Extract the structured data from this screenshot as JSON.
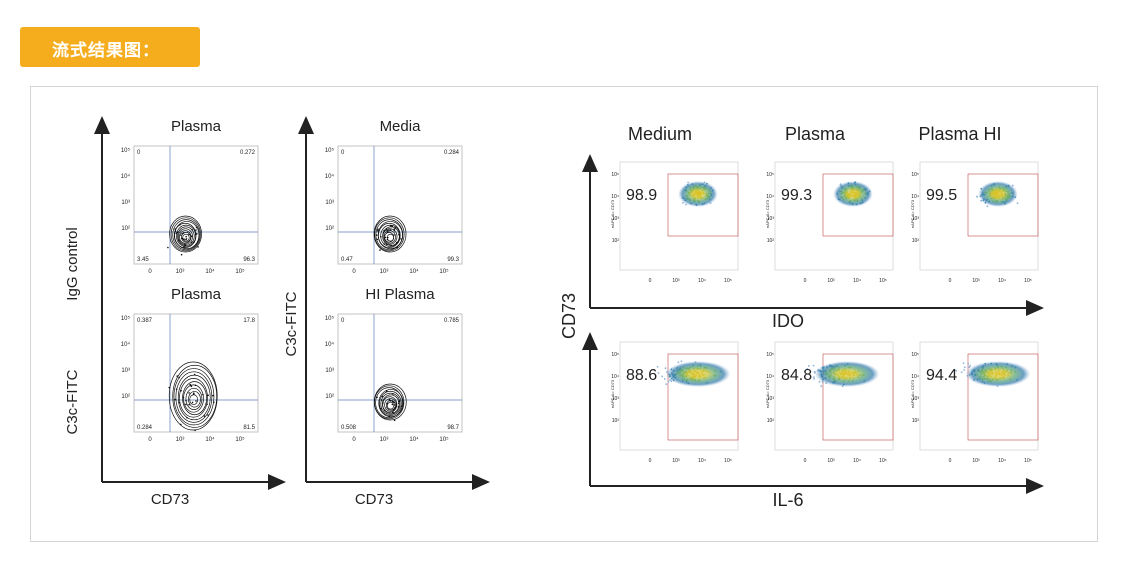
{
  "header": {
    "title": "流式结果图："
  },
  "colors": {
    "badge": "#f5ad1d",
    "axis": "#222222",
    "gate": "#5b7fb8",
    "box_gate": "#c04a4a",
    "quad_text": "#4a6aa8"
  },
  "chart_data": [
    {
      "type": "contour-panel-grid",
      "x_axis_label": "CD73",
      "y_axis_label": "C3c-FITC",
      "row_labels": [
        "IgG control",
        "C3c-FITC"
      ],
      "column_axis_label": "CD73",
      "tick_labels_x": [
        "0",
        "10³",
        "10⁴",
        "10⁵"
      ],
      "tick_labels_y": [
        "0",
        "10²",
        "10³",
        "10⁴",
        "10⁵"
      ],
      "panels": [
        {
          "title": "Plasma",
          "quadrants": {
            "ul": "0",
            "ur": "0.272",
            "ll": "3.45",
            "lr": "96.3"
          }
        },
        {
          "title": "Media",
          "quadrants": {
            "ul": "0",
            "ur": "0.284",
            "ll": "0.47",
            "lr": "99.3"
          }
        },
        {
          "title": "Plasma",
          "quadrants": {
            "ul": "0.387",
            "ur": "17.8",
            "ll": "0.284",
            "lr": "81.5"
          }
        },
        {
          "title": "HI Plasma",
          "quadrants": {
            "ul": "0",
            "ur": "0.785",
            "ll": "0.508",
            "lr": "98.7"
          }
        }
      ]
    },
    {
      "type": "density-panel-grid",
      "column_titles": [
        "Medium",
        "Plasma",
        "Plasma HI"
      ],
      "y_axis_label": "CD73",
      "row_x_labels": [
        "IDO",
        "IL-6"
      ],
      "panel_axis_text": "eAPC-A= CD73",
      "tick_labels_x": [
        "0",
        "10³",
        "10⁴",
        "10⁵"
      ],
      "tick_labels_y": [
        "0",
        "10²",
        "10³",
        "10⁴",
        "10⁵"
      ],
      "rows": [
        {
          "x_label": "IDO",
          "values": [
            98.9,
            99.3,
            99.5
          ]
        },
        {
          "x_label": "IL-6",
          "values": [
            88.6,
            84.8,
            94.4
          ]
        }
      ]
    }
  ]
}
